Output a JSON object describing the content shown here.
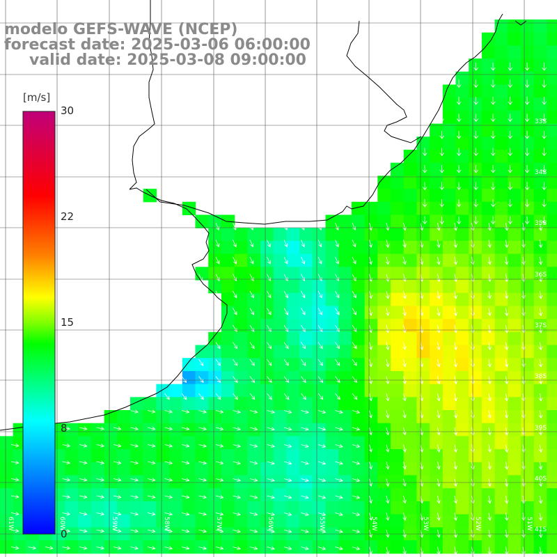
{
  "title": {
    "line1": "modelo GEFS-WAVE (NCEP)",
    "line2": "forecast date: 2025-03-06 06:00:00",
    "line3": "valid date: 2025-03-08 09:00:00"
  },
  "colorbar": {
    "unit": "[m/s]",
    "min": 0,
    "max": 30,
    "ticks": [
      "30",
      "22",
      "15",
      "8",
      "0"
    ],
    "tick_values": [
      30,
      22,
      15,
      8,
      0
    ]
  },
  "lat_labels": [
    "33S",
    "34S",
    "35S",
    "36S",
    "37S",
    "38S",
    "39S",
    "40S",
    "41S"
  ],
  "lon_labels": [
    "61W",
    "60W",
    "59W",
    "58W",
    "57W",
    "56W",
    "55W",
    "54W",
    "53W",
    "52W",
    "51W"
  ],
  "colors": {
    "coast": "#000000",
    "grid": "#555555",
    "arrows": "#ffffff",
    "title": "#8a8a8a"
  },
  "chart_data": {
    "type": "heatmap",
    "field": "wind speed",
    "unit": "m/s",
    "scale_range": [
      0,
      30
    ],
    "notes": "Wind speed over sea with white direction arrows; mostly 8–15 m/s, higher (~15–17) to the east/southeast, lower (~3–8) near the coast around 37–38S."
  }
}
